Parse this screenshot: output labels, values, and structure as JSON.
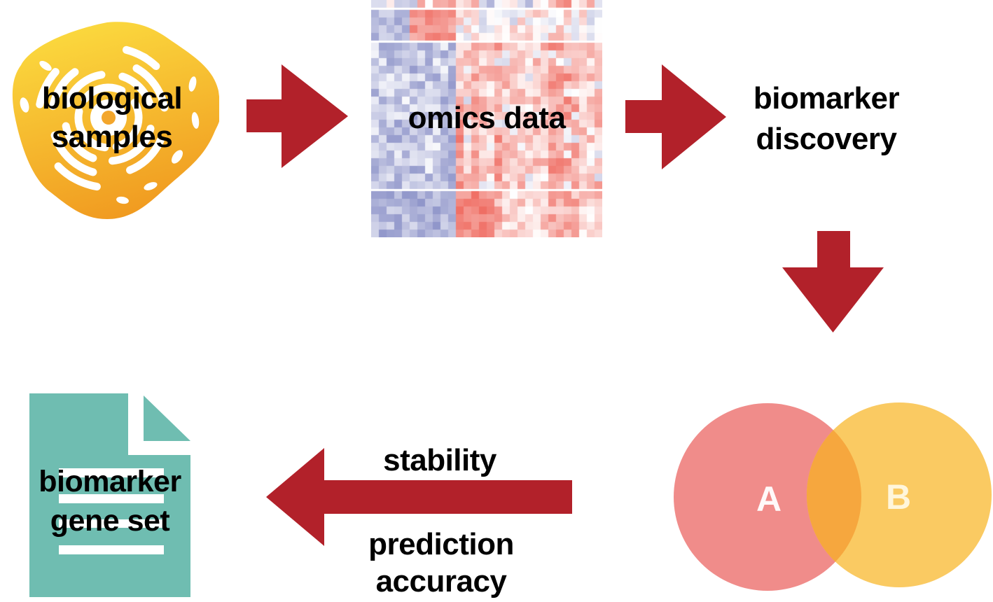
{
  "figure": {
    "background": "#ffffff",
    "description": "biomarker discovery workflow diagram"
  },
  "colors": {
    "text": "#000000",
    "arrow_red": "#b2212a",
    "blob_yellow": "#fbd93e",
    "blob_orange": "#f0981f",
    "nucleolus_orange": "#f3a62c",
    "organelle_white": "#ffffff",
    "doc_teal": "#6fbdb1",
    "doc_lines_white": "#ffffff",
    "venn_a_pink": "#f08c8a",
    "venn_b_yellow": "#faca62",
    "venn_overlap_orange": "#f6a73e"
  },
  "icons": {
    "cell": "cell-blob-with-organelles",
    "heatmap": "omics-expression-heatmap",
    "venn": "two-set-venn",
    "document": "document-with-folded-corner",
    "arrows": "thick-block-arrows"
  },
  "nodes": {
    "biological_samples": {
      "line1": "biological",
      "line2": "samples"
    },
    "omics_data": {
      "label": "omics data"
    },
    "biomarker_discovery": {
      "line1": "biomarker",
      "line2": "discovery"
    },
    "venn": {
      "set_a": "A",
      "set_b": "B"
    },
    "biomarker_gene_set": {
      "line1": "biomarker",
      "line2": "gene set"
    }
  },
  "edges": {
    "stability_label": "stability",
    "prediction_accuracy": {
      "line1": "prediction",
      "line2": "accuracy"
    }
  },
  "heatmap": {
    "cols": 30,
    "rows": 30,
    "cell": 11,
    "gap": 3,
    "gap_after_rows": [
      0,
      4,
      23
    ],
    "seed": 20,
    "palette": {
      "negative": "#7b82c0",
      "positive": "#ee6055",
      "background": "#ffffff"
    },
    "structure": "left columns 0-10 blue block, right columns 11-29 pink/red block, red sub-block cols 5-10 rows 1-4, strong red column stripes cols 11-15 in bottom band"
  }
}
